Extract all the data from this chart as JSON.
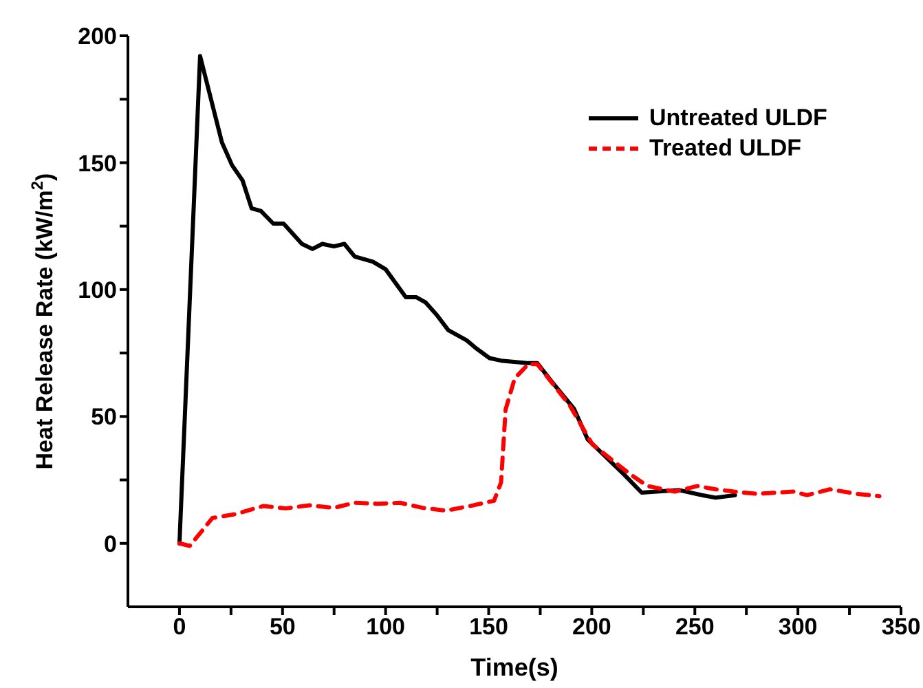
{
  "chart_data": {
    "type": "line",
    "xlabel": "Time(s)",
    "ylabel": "Heat Release Rate (kW/m$^{2}$)",
    "xlim": [
      -25,
      350
    ],
    "xticks": [
      0,
      {
        "value": 25,
        "label": null
      },
      50,
      {
        "value": 75,
        "label": null
      },
      100,
      {
        "value": 125,
        "label": null
      },
      150,
      {
        "value": 175,
        "label": null
      },
      200,
      {
        "value": 225,
        "label": null
      },
      250,
      {
        "value": 275,
        "label": null
      },
      300,
      {
        "value": 325,
        "label": null
      },
      350
    ],
    "ylim": [
      -25,
      200
    ],
    "yticks": [
      0,
      {
        "value": 25,
        "label": null
      },
      50,
      {
        "value": 75,
        "label": null
      },
      100,
      {
        "value": 125,
        "label": null
      },
      150,
      {
        "value": 175,
        "label": null
      },
      200
    ],
    "grid": false,
    "legend": "top right",
    "marker": "none",
    "series": [
      {
        "name": "Untreated ULDF",
        "color": "#000000",
        "line_style": "solid",
        "x": [
          0,
          10,
          20.6,
          25.5,
          30.6,
          35,
          39.5,
          45.5,
          50.5,
          59.4,
          64.5,
          69.3,
          74.9,
          80,
          85,
          93.8,
          100,
          109.8,
          114.8,
          119.3,
          124.8,
          130.4,
          139.3,
          143.7,
          150.4,
          156,
          169.2,
          173.6,
          180.3,
          191.4,
          198,
          215.8,
          224.2,
          242.4,
          253.5,
          260.1,
          269.5
        ],
        "values": [
          0,
          192,
          158,
          149,
          143,
          132,
          131,
          126,
          126,
          118,
          116,
          118,
          117,
          118,
          113,
          111,
          108,
          97,
          97,
          95,
          90,
          84,
          80,
          77,
          73,
          72,
          71,
          71,
          64,
          53,
          41,
          27,
          20,
          21,
          19,
          18,
          19
        ]
      },
      {
        "name": "Treated ULDF",
        "color": "#ff0000",
        "line_style": "dashed",
        "x": [
          0,
          5,
          16,
          27,
          40.6,
          51.7,
          62.8,
          75,
          85,
          96,
          107,
          118,
          129.3,
          142.6,
          152.6,
          156,
          158.2,
          162.6,
          169.2,
          173.6,
          189.2,
          200.3,
          218,
          227,
          240.2,
          251.3,
          260.1,
          269,
          280,
          297.8,
          304.4,
          315.5,
          328.8,
          339.5
        ],
        "values": [
          0,
          -1,
          10,
          11.5,
          14.7,
          13.8,
          15,
          14,
          16,
          15.6,
          16,
          14,
          12.9,
          15,
          16.8,
          24,
          52.7,
          65,
          70.6,
          70.6,
          54.5,
          39,
          27.6,
          22.6,
          20.4,
          22.6,
          21.3,
          20.4,
          19.5,
          20.4,
          19,
          21.3,
          19.5,
          18.6
        ]
      }
    ]
  }
}
